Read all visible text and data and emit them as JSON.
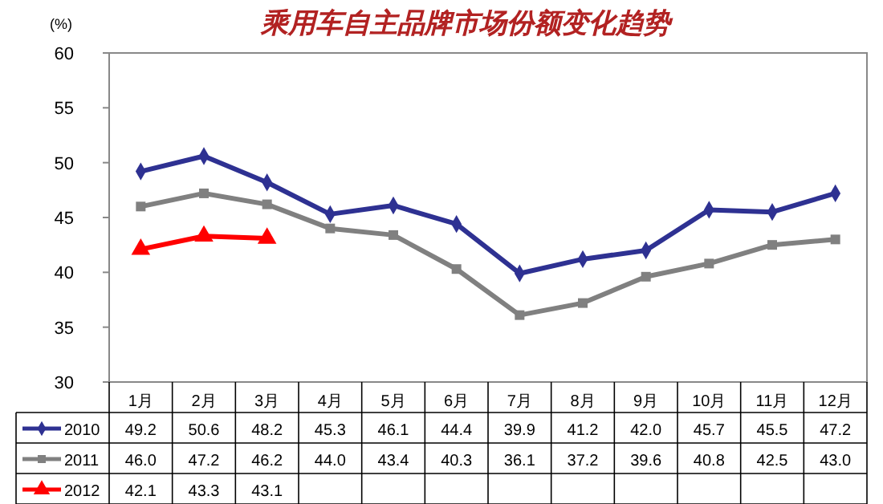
{
  "chart_data": {
    "type": "line",
    "title": "乘用车自主品牌市场份额变化趋势",
    "ylabel": "(%)",
    "categories": [
      "1月",
      "2月",
      "3月",
      "4月",
      "5月",
      "6月",
      "7月",
      "8月",
      "9月",
      "10月",
      "11月",
      "12月"
    ],
    "series": [
      {
        "name": "2010",
        "color": "#2e3192",
        "marker": "diamond",
        "values": [
          49.2,
          50.6,
          48.2,
          45.3,
          46.1,
          44.4,
          39.9,
          41.2,
          42.0,
          45.7,
          45.5,
          47.2
        ],
        "value_labels": [
          "49.2",
          "50.6",
          "48.2",
          "45.3",
          "46.1",
          "44.4",
          "39.9",
          "41.2",
          "42.0",
          "45.7",
          "45.5",
          "47.2"
        ]
      },
      {
        "name": "2011",
        "color": "#808080",
        "marker": "square",
        "values": [
          46.0,
          47.2,
          46.2,
          44.0,
          43.4,
          40.3,
          36.1,
          37.2,
          39.6,
          40.8,
          42.5,
          43.0
        ],
        "value_labels": [
          "46.0",
          "47.2",
          "46.2",
          "44.0",
          "43.4",
          "40.3",
          "36.1",
          "37.2",
          "39.6",
          "40.8",
          "42.5",
          "43.0"
        ]
      },
      {
        "name": "2012",
        "color": "#ff0000",
        "marker": "triangle",
        "values": [
          42.1,
          43.3,
          43.1,
          null,
          null,
          null,
          null,
          null,
          null,
          null,
          null,
          null
        ],
        "value_labels": [
          "42.1",
          "43.3",
          "43.1",
          null,
          null,
          null,
          null,
          null,
          null,
          null,
          null,
          null
        ]
      }
    ],
    "ylim": [
      30,
      60
    ],
    "yticks": [
      30,
      35,
      40,
      45,
      50,
      55,
      60
    ],
    "legend": "bottom"
  }
}
